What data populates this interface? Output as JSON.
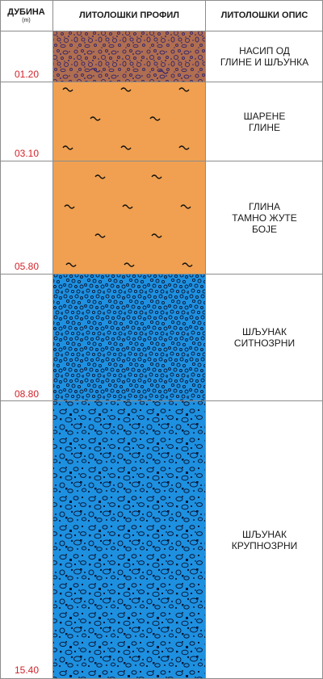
{
  "header": {
    "depth_label": "ДУБИНА",
    "depth_unit": "(m)",
    "profile_label": "ЛИТОЛОШКИ ПРОФИЛ",
    "description_label": "ЛИТОЛОШКИ ОПИС"
  },
  "layers": [
    {
      "bottom_depth": "01.20",
      "description": [
        "НАСИП ОД",
        "ГЛИНЕ И ШЉУНКА"
      ],
      "pattern": "fill-gravel",
      "color": "#b06e50"
    },
    {
      "bottom_depth": "03.10",
      "description": [
        "ШАРЕНЕ",
        "ГЛИНЕ"
      ],
      "pattern": "clay-tilde",
      "color": "#f0a050"
    },
    {
      "bottom_depth": "05.80",
      "description": [
        "ГЛИНА",
        "ТАМНО ЖУТЕ",
        "БОЈЕ"
      ],
      "pattern": "clay-tilde",
      "color": "#f0a050"
    },
    {
      "bottom_depth": "08.80",
      "description": [
        "ШЉУНАК",
        "СИТНОЗРНИ"
      ],
      "pattern": "fine-gravel",
      "color": "#1e90e0"
    },
    {
      "bottom_depth": "15.40",
      "description": [
        "ШЉУНАК",
        "КРУПНОЗРНИ"
      ],
      "pattern": "coarse-gravel",
      "color": "#1e90e0"
    }
  ]
}
